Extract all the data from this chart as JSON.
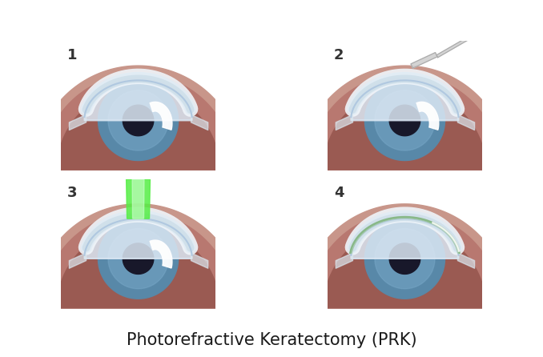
{
  "title": "Photorefractive Keratectomy (PRK)",
  "title_fontsize": 15,
  "title_color": "#1a1a1a",
  "background_color": "#ffffff",
  "panel_labels": [
    "1",
    "2",
    "3",
    "4"
  ],
  "panel_label_fontsize": 13,
  "colors": {
    "sclera_light": "#c8968a",
    "sclera_mid": "#b87870",
    "sclera_dark": "#9a5a52",
    "iris_base": "#5888a8",
    "iris_mid": "#4878a0",
    "iris_light": "#78a8c8",
    "iris_outer": "#3060808",
    "pupil": "#18182a",
    "cornea_fill": "#dce8f4",
    "cornea_white": "#eef4fa",
    "cornea_highlight": "#f5f9fd",
    "cornea_edge": "#b0c8e0",
    "cornea_layer1": "#e8f0f8",
    "cornea_layer2": "#d8e8f4",
    "laser_green": "#55ee44",
    "laser_bright": "#ccffcc",
    "contact_fill": "#d0e8d0",
    "contact_edge": "#88b888",
    "tool_fill": "#d0d0d0",
    "tool_edge": "#aaaaaa",
    "panel_border": "#888888",
    "reflection_white": "#ffffff"
  }
}
